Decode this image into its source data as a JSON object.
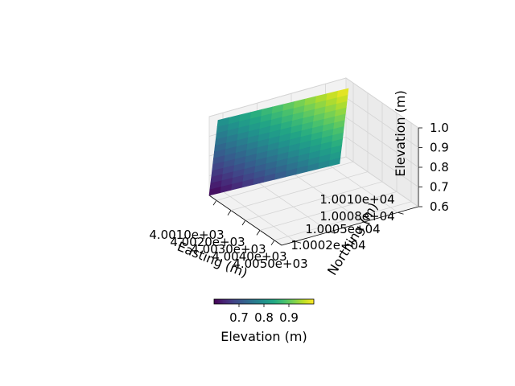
{
  "chart_data": {
    "type": "surface-3d",
    "title": "",
    "xlabel": "Easting (m)",
    "ylabel": "Northing (m)",
    "zlabel": "Elevation (m)",
    "x_ticks": [
      "4.0010e+03",
      "4.0020e+03",
      "4.0030e+03",
      "4.0040e+03",
      "4.0050e+03"
    ],
    "y_ticks": [
      "1.0002e+04",
      "1.0005e+04",
      "1.0008e+04",
      "1.0010e+04"
    ],
    "z_ticks": [
      "0.6",
      "0.7",
      "0.8",
      "0.9",
      "1.0"
    ],
    "x_range": [
      4001,
      4005
    ],
    "y_range": [
      10002,
      10010
    ],
    "zlim": [
      0.6,
      1.0
    ],
    "surface_corners": [
      {
        "x": 4001,
        "y": 10002,
        "z": 0.6
      },
      {
        "x": 4005,
        "y": 10002,
        "z": 0.8
      },
      {
        "x": 4001,
        "y": 10010,
        "z": 0.8
      },
      {
        "x": 4005,
        "y": 10010,
        "z": 1.0
      }
    ],
    "colormap": "viridis",
    "grid": true,
    "colorbar": {
      "label": "Elevation (m)",
      "range": [
        0.6,
        1.0
      ],
      "ticks": [
        "0.7",
        "0.8",
        "0.9"
      ],
      "orientation": "horizontal",
      "placement": "bottom"
    }
  }
}
